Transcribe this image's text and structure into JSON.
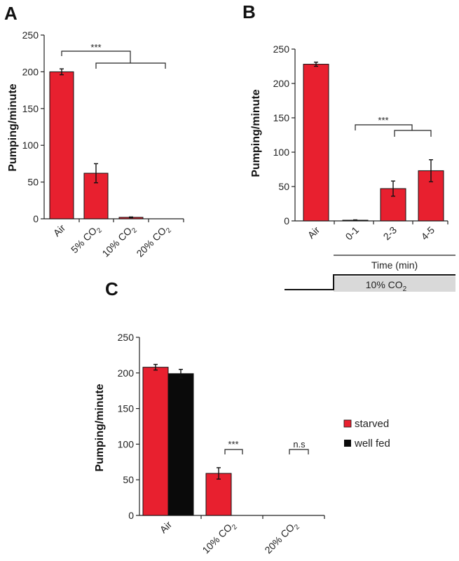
{
  "chart_data": [
    {
      "panel": "A",
      "type": "bar",
      "ylabel": "Pumping/minute",
      "ylim": [
        0,
        250
      ],
      "yticks": [
        "0",
        "50",
        "100",
        "150",
        "200",
        "250"
      ],
      "categories": [
        "Air",
        "5% CO",
        "10% CO",
        "20% CO"
      ],
      "category_subscripts": [
        "",
        "2",
        "2",
        "2"
      ],
      "values": [
        200,
        62,
        2,
        0
      ],
      "errors": [
        4,
        13,
        0.5,
        0
      ],
      "significance": {
        "label": "***"
      },
      "colors": {
        "bar": "#e8202f",
        "edge": "#111111"
      }
    },
    {
      "panel": "B",
      "type": "bar",
      "ylabel": "Pumping/minute",
      "ylim": [
        0,
        250
      ],
      "yticks": [
        "0",
        "50",
        "100",
        "150",
        "200",
        "250"
      ],
      "categories": [
        "Air",
        "0-1",
        "2-3",
        "4-5"
      ],
      "values": [
        228,
        1,
        47,
        73
      ],
      "errors": [
        3,
        0.5,
        11,
        16
      ],
      "significance": {
        "label": "***"
      },
      "time_label": "Time (min)",
      "stimulus_label": "10% CO",
      "stimulus_subscript": "2",
      "colors": {
        "bar": "#e8202f",
        "edge": "#111111",
        "stimulus": "#d9d9d9"
      }
    },
    {
      "panel": "C",
      "type": "bar",
      "ylabel": "Pumping/minute",
      "ylim": [
        0,
        250
      ],
      "yticks": [
        "0",
        "50",
        "100",
        "150",
        "200",
        "250"
      ],
      "categories": [
        "Air",
        "10% CO",
        "20% CO"
      ],
      "category_subscripts": [
        "",
        "2",
        "2"
      ],
      "series": [
        {
          "name": "starved",
          "values": [
            208,
            59,
            0
          ],
          "errors": [
            4,
            8,
            0
          ],
          "color": "#e8202f"
        },
        {
          "name": "well fed",
          "values": [
            199,
            0,
            0
          ],
          "errors": [
            6,
            0,
            0
          ],
          "color": "#0a0a0a"
        }
      ],
      "significance": [
        {
          "category": "10% CO",
          "label": "***"
        },
        {
          "category": "20% CO",
          "label": "n.s"
        }
      ],
      "legend": "right"
    }
  ]
}
